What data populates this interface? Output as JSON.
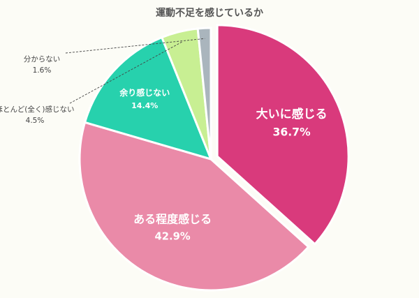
{
  "chart_data": {
    "type": "pie",
    "title": "運動不足を感じているか",
    "slices": [
      {
        "label": "大いに感じる",
        "value": 36.7,
        "value_label": "36.7%",
        "color": "#d93a7c"
      },
      {
        "label": "ある程度感じる",
        "value": 42.9,
        "value_label": "42.9%",
        "color": "#ea8aa8"
      },
      {
        "label": "余り感じない",
        "value": 14.4,
        "value_label": "14.4%",
        "color": "#27d1ad"
      },
      {
        "label": "ほとんど(全く)感じない",
        "value": 4.5,
        "value_label": "4.5%",
        "color": "#c8ef93"
      },
      {
        "label": "分からない",
        "value": 1.6,
        "value_label": "1.6%",
        "color": "#aab5bd"
      }
    ],
    "start_angle": "12 o'clock",
    "direction": "clockwise",
    "exploded_slice": "大いに感じる"
  }
}
